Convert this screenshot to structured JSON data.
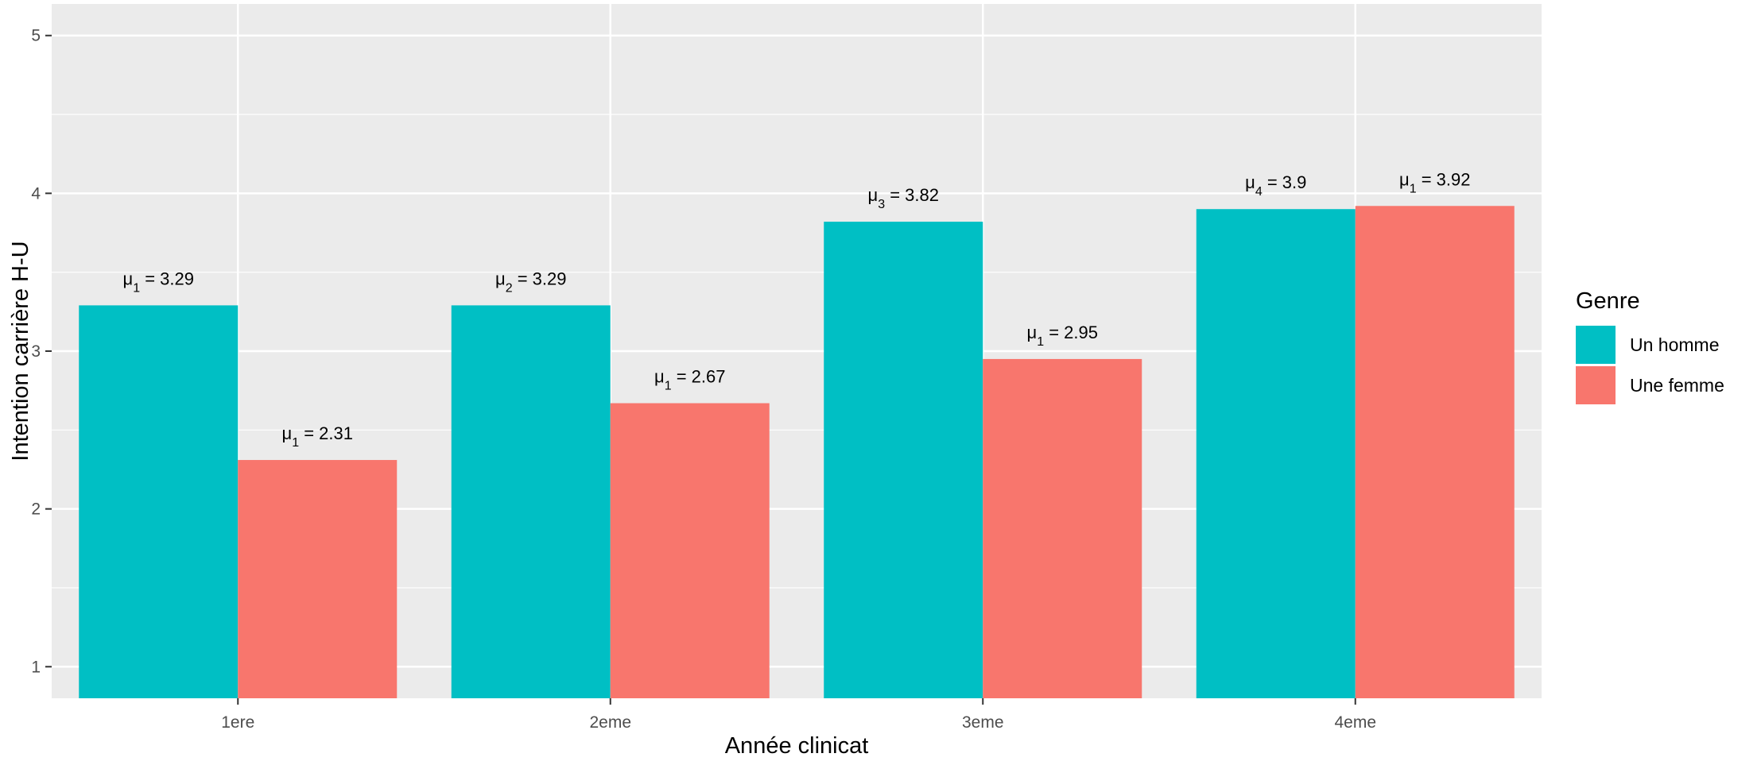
{
  "chart_data": {
    "type": "bar",
    "xlabel": "Année clinicat",
    "ylabel": "Intention carrière H-U",
    "categories": [
      "1ere",
      "2eme",
      "3eme",
      "4eme"
    ],
    "y_ticks": [
      "1",
      "2",
      "3",
      "4",
      "5"
    ],
    "ylim": [
      0.8,
      5.2
    ],
    "grid": true,
    "legend": {
      "title": "Genre",
      "placement": "right"
    },
    "series": [
      {
        "name": "Un homme",
        "color": "#00BFC4",
        "values": [
          3.29,
          3.29,
          3.82,
          3.9
        ],
        "labels": [
          {
            "sym": "μ",
            "sub": "1",
            "val": " = 3.29"
          },
          {
            "sym": "μ",
            "sub": "2",
            "val": " = 3.29"
          },
          {
            "sym": "μ",
            "sub": "3",
            "val": " = 3.82"
          },
          {
            "sym": "μ",
            "sub": "4",
            "val": " = 3.9"
          }
        ]
      },
      {
        "name": "Une femme",
        "color": "#F8766D",
        "values": [
          2.31,
          2.67,
          2.95,
          3.92
        ],
        "labels": [
          {
            "sym": "μ",
            "sub": "1",
            "val": " = 2.31"
          },
          {
            "sym": "μ",
            "sub": "1",
            "val": " = 2.67"
          },
          {
            "sym": "μ",
            "sub": "1",
            "val": " = 2.95"
          },
          {
            "sym": "μ",
            "sub": "1",
            "val": " = 3.92"
          }
        ]
      }
    ],
    "panel_color": "#EBEBEB",
    "grid_color": "#FFFFFF"
  }
}
